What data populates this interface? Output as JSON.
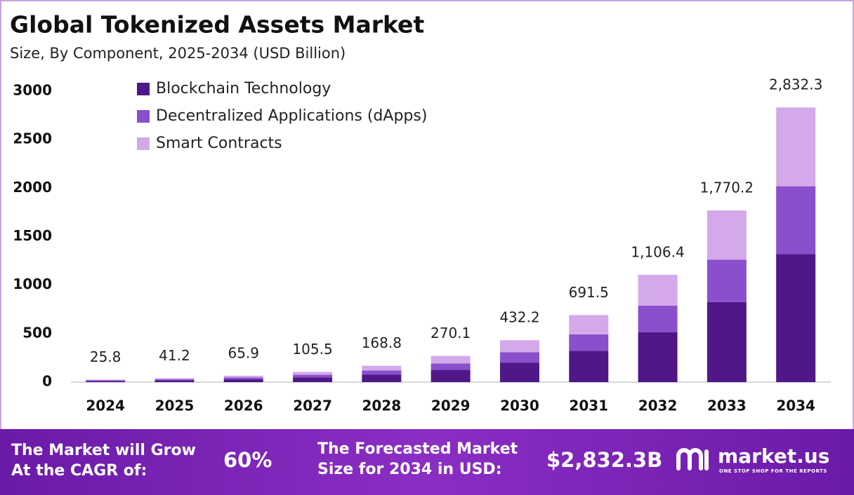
{
  "chart_data": {
    "type": "stacked_bar",
    "title": "Global Tokenized Assets Market",
    "subtitle": "Size, By Component, 2025-2034 (USD Billion)",
    "categories": [
      "2024",
      "2025",
      "2026",
      "2027",
      "2028",
      "2029",
      "2030",
      "2031",
      "2032",
      "2033",
      "2034"
    ],
    "series": [
      {
        "name": "Blockchain Technology",
        "color": "#4f1787",
        "values": [
          12.0,
          19.2,
          30.7,
          49.2,
          78.7,
          125.9,
          201.4,
          322.2,
          515.6,
          824.9,
          1319.8
        ]
      },
      {
        "name": "Decentralized Applications (dApps)",
        "color": "#8a4fcc",
        "values": [
          6.4,
          10.2,
          16.3,
          26.1,
          41.7,
          66.7,
          106.8,
          170.8,
          273.3,
          437.2,
          699.6
        ]
      },
      {
        "name": "Smart Contracts",
        "color": "#d4a9ea",
        "values": [
          7.4,
          11.8,
          18.9,
          30.2,
          48.4,
          77.5,
          124.0,
          198.5,
          317.5,
          508.1,
          812.9
        ]
      }
    ],
    "totals": {
      "values": [
        25.8,
        41.2,
        65.9,
        105.5,
        168.8,
        270.1,
        432.2,
        691.5,
        1106.4,
        1770.2,
        2832.3
      ],
      "value_labels": [
        "25.8",
        "41.2",
        "65.9",
        "105.5",
        "168.8",
        "270.1",
        "432.2",
        "691.5",
        "1,106.4",
        "1,770.2",
        "2,832.3"
      ]
    },
    "ylim": [
      0,
      3000
    ],
    "yticks": [
      0,
      500,
      1000,
      1500,
      2000,
      2500,
      3000
    ],
    "grid": false,
    "legend": "top-left"
  },
  "footer": {
    "cagr_text": "The Market will Grow At the CAGR of:",
    "cagr_value": "60%",
    "forecast_text": "The Forecasted Market Size for 2034 in USD:",
    "forecast_value": "$2,832.3B",
    "brand": "market.us",
    "tagline": "ONE STOP SHOP FOR THE REPORTS"
  }
}
